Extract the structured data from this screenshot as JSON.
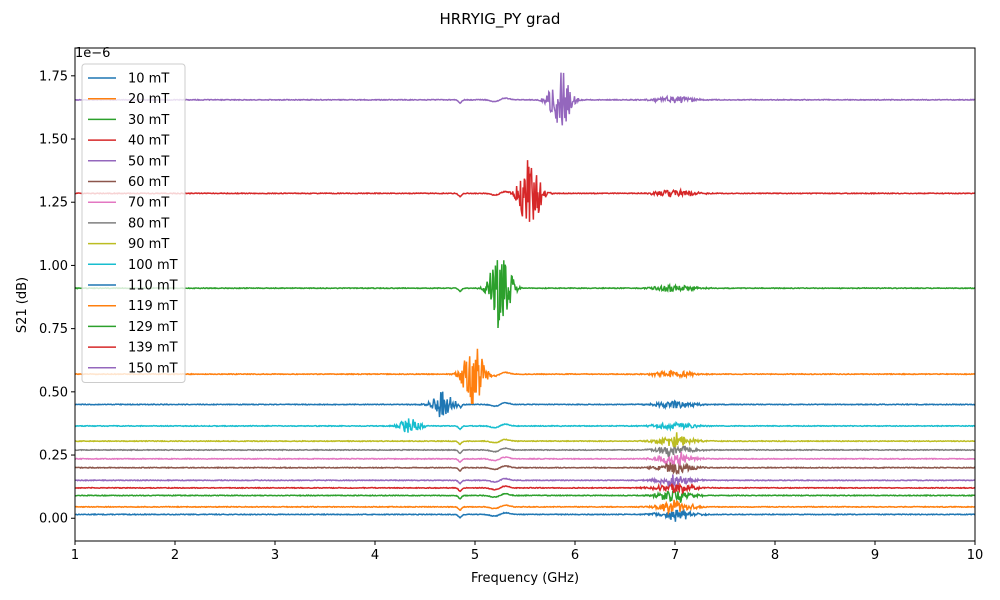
{
  "chart_data": {
    "type": "line",
    "title": "HRRYIG_PY grad",
    "xlabel": "Frequency (GHz)",
    "ylabel": "S21 (dB)",
    "y_scale_label": "1e−6",
    "xlim": [
      1,
      10
    ],
    "ylim": [
      -0.09,
      1.86
    ],
    "x_ticks": [
      1,
      2,
      3,
      4,
      5,
      6,
      7,
      8,
      9,
      10
    ],
    "y_ticks": [
      0.0,
      0.25,
      0.5,
      0.75,
      1.0,
      1.25,
      1.5,
      1.75
    ],
    "y_tick_labels": [
      "0.00",
      "0.25",
      "0.50",
      "0.75",
      "1.00",
      "1.25",
      "1.50",
      "1.75"
    ],
    "grid": false,
    "legend_position": "top-left",
    "series": [
      {
        "name": "10 mT",
        "color": "#1f77b4",
        "baseline": 0.015,
        "resonance_center": 7.0,
        "resonance_amp": 0.02
      },
      {
        "name": "20 mT",
        "color": "#ff7f0e",
        "baseline": 0.045,
        "resonance_center": 7.0,
        "resonance_amp": 0.02
      },
      {
        "name": "30 mT",
        "color": "#2ca02c",
        "baseline": 0.09,
        "resonance_center": 7.0,
        "resonance_amp": 0.02
      },
      {
        "name": "40 mT",
        "color": "#d62728",
        "baseline": 0.12,
        "resonance_center": 7.0,
        "resonance_amp": 0.02
      },
      {
        "name": "50 mT",
        "color": "#9467bd",
        "baseline": 0.15,
        "resonance_center": 7.0,
        "resonance_amp": 0.02
      },
      {
        "name": "60 mT",
        "color": "#8c564b",
        "baseline": 0.2,
        "resonance_center": 7.0,
        "resonance_amp": 0.02
      },
      {
        "name": "70 mT",
        "color": "#e377c2",
        "baseline": 0.235,
        "resonance_center": 7.0,
        "resonance_amp": 0.02
      },
      {
        "name": "80 mT",
        "color": "#7f7f7f",
        "baseline": 0.27,
        "resonance_center": 7.0,
        "resonance_amp": 0.02
      },
      {
        "name": "90 mT",
        "color": "#bcbd22",
        "baseline": 0.305,
        "resonance_center": 7.0,
        "resonance_amp": 0.025
      },
      {
        "name": "100 mT",
        "color": "#17becf",
        "baseline": 0.365,
        "resonance_center": 4.35,
        "resonance_amp": 0.03
      },
      {
        "name": "110 mT",
        "color": "#1f77b4",
        "baseline": 0.45,
        "resonance_center": 4.68,
        "resonance_amp": 0.06
      },
      {
        "name": "119 mT",
        "color": "#ff7f0e",
        "baseline": 0.57,
        "resonance_center": 4.98,
        "resonance_amp": 0.12
      },
      {
        "name": "129 mT",
        "color": "#2ca02c",
        "baseline": 0.91,
        "resonance_center": 5.25,
        "resonance_amp": 0.16
      },
      {
        "name": "139 mT",
        "color": "#d62728",
        "baseline": 1.285,
        "resonance_center": 5.55,
        "resonance_amp": 0.15
      },
      {
        "name": "150 mT",
        "color": "#9467bd",
        "baseline": 1.655,
        "resonance_center": 5.85,
        "resonance_amp": 0.12
      }
    ]
  }
}
